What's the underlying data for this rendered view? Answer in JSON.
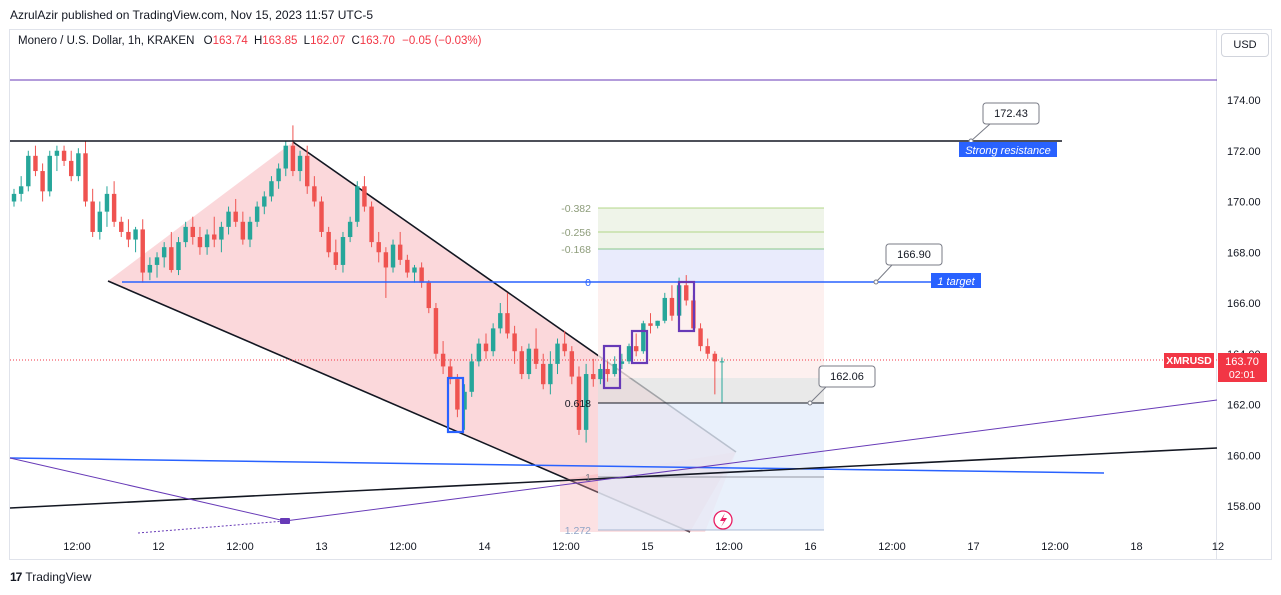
{
  "publisher_line": "AzrulAzir published on TradingView.com, Nov 15, 2023 11:57 UTC-5",
  "legend": {
    "symbol": "Monero / U.S. Dollar, 1h, KRAKEN",
    "o_label": "O",
    "o_value": "163.74",
    "h_label": "H",
    "h_value": "163.85",
    "l_label": "L",
    "l_value": "162.07",
    "c_label": "C",
    "c_value": "163.70",
    "change": "−0.05 (−0.03%)"
  },
  "currency": "USD",
  "footer": {
    "logo": "17",
    "brand": "TradingView"
  },
  "colors": {
    "up": "#26a69a",
    "down": "#ef5350",
    "accent": "#2962ff",
    "purple": "#673ab7"
  },
  "chart_data": {
    "type": "candlestick",
    "symbol": "XMRUSD",
    "ylim": [
      156.8,
      175.5
    ],
    "y_ticks": [
      "174.00",
      "172.00",
      "170.00",
      "168.00",
      "166.00",
      "164.00",
      "162.00",
      "160.00",
      "158.00"
    ],
    "x_ticks": [
      "12:00",
      "12",
      "12:00",
      "13",
      "12:00",
      "14",
      "12:00",
      "15",
      "12:00",
      "16",
      "12:00",
      "17",
      "12:00",
      "18",
      "12"
    ],
    "last_price": {
      "symbol": "XMRUSD",
      "price": "163.70",
      "countdown": "02:01"
    },
    "candles": [
      [
        170.0,
        170.5,
        169.8,
        170.3
      ],
      [
        170.3,
        171.0,
        170.0,
        170.6
      ],
      [
        170.6,
        172.0,
        170.4,
        171.8
      ],
      [
        171.8,
        172.2,
        171.0,
        171.2
      ],
      [
        171.2,
        171.5,
        170.0,
        170.4
      ],
      [
        170.4,
        172.0,
        170.2,
        171.8
      ],
      [
        171.8,
        172.2,
        171.2,
        172.0
      ],
      [
        172.0,
        172.2,
        171.4,
        171.6
      ],
      [
        171.6,
        172.0,
        170.8,
        171.0
      ],
      [
        171.0,
        172.1,
        170.8,
        171.9
      ],
      [
        171.9,
        172.4,
        169.8,
        170.0
      ],
      [
        170.0,
        170.5,
        168.6,
        168.8
      ],
      [
        168.8,
        170.0,
        168.5,
        169.6
      ],
      [
        169.6,
        170.6,
        169.0,
        170.3
      ],
      [
        170.3,
        170.8,
        169.0,
        169.2
      ],
      [
        169.2,
        169.4,
        168.6,
        168.8
      ],
      [
        168.8,
        169.3,
        168.2,
        168.5
      ],
      [
        168.5,
        169.0,
        168.0,
        168.9
      ],
      [
        168.9,
        169.3,
        166.8,
        167.2
      ],
      [
        167.2,
        167.8,
        166.9,
        167.5
      ],
      [
        167.5,
        168.0,
        167.0,
        167.8
      ],
      [
        167.8,
        168.4,
        167.4,
        168.2
      ],
      [
        168.2,
        168.8,
        167.2,
        167.3
      ],
      [
        167.3,
        168.6,
        167.1,
        168.4
      ],
      [
        168.4,
        169.2,
        168.2,
        169.0
      ],
      [
        169.0,
        169.4,
        168.3,
        168.6
      ],
      [
        168.6,
        169.0,
        167.9,
        168.2
      ],
      [
        168.2,
        168.9,
        167.9,
        168.7
      ],
      [
        168.7,
        169.4,
        168.2,
        168.5
      ],
      [
        168.5,
        169.2,
        168.0,
        169.0
      ],
      [
        169.0,
        169.8,
        168.7,
        169.6
      ],
      [
        169.6,
        170.1,
        169.0,
        169.2
      ],
      [
        169.2,
        169.6,
        168.3,
        168.5
      ],
      [
        168.5,
        169.4,
        168.2,
        169.2
      ],
      [
        169.2,
        170.0,
        169.0,
        169.8
      ],
      [
        169.8,
        170.4,
        169.5,
        170.2
      ],
      [
        170.2,
        171.0,
        170.0,
        170.8
      ],
      [
        170.8,
        171.5,
        170.5,
        171.3
      ],
      [
        171.3,
        172.4,
        171.0,
        172.2
      ],
      [
        172.2,
        173.0,
        171.0,
        171.2
      ],
      [
        171.2,
        172.0,
        170.8,
        171.8
      ],
      [
        171.8,
        172.2,
        170.3,
        170.6
      ],
      [
        170.6,
        171.0,
        169.8,
        170.0
      ],
      [
        170.0,
        170.2,
        168.6,
        168.8
      ],
      [
        168.8,
        169.0,
        167.8,
        168.0
      ],
      [
        168.0,
        168.5,
        167.3,
        167.5
      ],
      [
        167.5,
        168.8,
        167.2,
        168.6
      ],
      [
        168.6,
        169.4,
        168.4,
        169.2
      ],
      [
        169.2,
        170.8,
        169.0,
        170.6
      ],
      [
        170.6,
        171.0,
        169.6,
        169.8
      ],
      [
        169.8,
        170.0,
        168.2,
        168.4
      ],
      [
        168.4,
        168.8,
        167.6,
        168.0
      ],
      [
        168.0,
        168.2,
        166.2,
        167.4
      ],
      [
        167.4,
        168.5,
        167.2,
        168.3
      ],
      [
        168.3,
        168.8,
        167.5,
        167.7
      ],
      [
        167.7,
        167.9,
        167.0,
        167.2
      ],
      [
        167.2,
        167.5,
        166.8,
        167.4
      ],
      [
        167.4,
        167.6,
        166.6,
        166.8
      ],
      [
        166.8,
        166.9,
        165.6,
        165.8
      ],
      [
        165.8,
        166.0,
        163.8,
        164.0
      ],
      [
        164.0,
        164.5,
        163.2,
        163.5
      ],
      [
        163.5,
        163.8,
        162.8,
        163.0
      ],
      [
        163.0,
        163.2,
        161.5,
        161.8
      ],
      [
        161.8,
        162.8,
        161.0,
        162.5
      ],
      [
        162.5,
        164.0,
        162.3,
        163.7
      ],
      [
        163.7,
        164.6,
        163.5,
        164.4
      ],
      [
        164.4,
        164.8,
        163.8,
        164.1
      ],
      [
        164.1,
        165.2,
        163.9,
        165.0
      ],
      [
        165.0,
        166.0,
        164.8,
        165.6
      ],
      [
        165.6,
        166.4,
        164.6,
        164.8
      ],
      [
        164.8,
        165.1,
        163.6,
        164.1
      ],
      [
        164.1,
        164.3,
        163.0,
        163.2
      ],
      [
        163.2,
        164.4,
        163.0,
        164.2
      ],
      [
        164.2,
        165.0,
        163.4,
        163.6
      ],
      [
        163.6,
        164.0,
        162.6,
        162.8
      ],
      [
        162.8,
        164.1,
        162.4,
        163.6
      ],
      [
        163.6,
        164.6,
        163.2,
        164.4
      ],
      [
        164.4,
        164.9,
        163.9,
        164.1
      ],
      [
        164.1,
        164.3,
        162.8,
        163.1
      ],
      [
        163.1,
        163.5,
        160.8,
        161.0
      ],
      [
        161.0,
        163.6,
        160.5,
        163.2
      ],
      [
        163.2,
        163.8,
        162.7,
        163.0
      ],
      [
        163.0,
        163.6,
        162.8,
        163.4
      ],
      [
        163.4,
        163.7,
        162.9,
        163.2
      ],
      [
        163.2,
        163.9,
        163.1,
        163.6
      ],
      [
        163.6,
        164.0,
        163.4,
        163.7
      ],
      [
        163.7,
        164.4,
        163.6,
        164.3
      ],
      [
        164.3,
        164.8,
        163.9,
        164.1
      ],
      [
        164.1,
        165.3,
        164.0,
        165.2
      ],
      [
        165.2,
        165.6,
        164.8,
        165.1
      ],
      [
        165.1,
        165.3,
        165.0,
        165.3
      ],
      [
        165.3,
        166.4,
        165.2,
        166.2
      ],
      [
        166.2,
        166.7,
        165.3,
        165.5
      ],
      [
        165.5,
        167.0,
        165.3,
        166.7
      ],
      [
        166.7,
        167.1,
        165.9,
        166.1
      ],
      [
        166.1,
        166.3,
        164.9,
        165.0
      ],
      [
        165.0,
        165.2,
        164.1,
        164.3
      ],
      [
        164.3,
        164.6,
        163.8,
        164.0
      ],
      [
        164.0,
        164.1,
        162.4,
        163.7
      ],
      [
        163.7,
        163.85,
        162.07,
        163.7
      ]
    ],
    "annotations": {
      "resistance_label": "Strong resistance",
      "resistance_price": "172.43",
      "resistance_level": 172.43,
      "target_label": "1 target",
      "target_price": "166.90",
      "target_level": 166.9,
      "support_price": "162.06",
      "support_level": 162.06,
      "fib_labels": [
        "-0.382",
        "-0.256",
        "-0.168",
        "0",
        "0.618",
        "1",
        "1.272"
      ]
    }
  }
}
